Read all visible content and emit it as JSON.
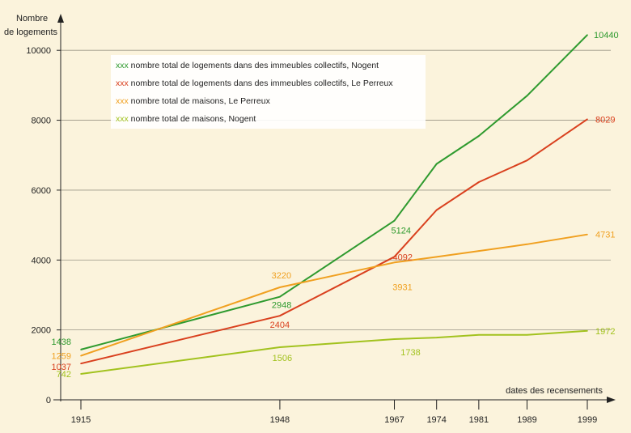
{
  "chart_data": {
    "type": "line",
    "ylabel_lines": [
      "Nombre",
      "de logements"
    ],
    "xlabel": "dates des recensements",
    "x": [
      1915,
      1948,
      1967,
      1974,
      1981,
      1989,
      1999
    ],
    "x_tick_labels": [
      "1915",
      "1948",
      "1967",
      "1974",
      "1981",
      "1989",
      "1999"
    ],
    "y_ticks": [
      0,
      2000,
      4000,
      6000,
      8000,
      10000
    ],
    "y_tick_labels": [
      "0",
      "2000",
      "4000",
      "6000",
      "8000",
      "10000"
    ],
    "ylim": [
      0,
      10800
    ],
    "grid": true,
    "legend_position": "top-left",
    "legend_marker": "xxx",
    "series": [
      {
        "name": "nombre total de logements dans des immeubles collectifs, Nogent",
        "color": "#2e9a2e",
        "values": [
          1438,
          2948,
          5124,
          6750,
          7550,
          8700,
          10440
        ],
        "data_labels": [
          {
            "index": 0,
            "text": "1438"
          },
          {
            "index": 1,
            "text": "2948"
          },
          {
            "index": 2,
            "text": "5124"
          },
          {
            "index": 6,
            "text": "10440"
          }
        ]
      },
      {
        "name": "nombre total de logements dans des immeubles collectifs, Le Perreux",
        "color": "#d9401e",
        "values": [
          1037,
          2404,
          4092,
          5430,
          6230,
          6850,
          8029
        ],
        "data_labels": [
          {
            "index": 0,
            "text": "1037"
          },
          {
            "index": 1,
            "text": "2404"
          },
          {
            "index": 2,
            "text": "4092"
          },
          {
            "index": 6,
            "text": "8029"
          }
        ]
      },
      {
        "name": "nombre total de maisons, Le Perreux",
        "color": "#f0a020",
        "values": [
          1259,
          3220,
          3931,
          4090,
          4260,
          4450,
          4731
        ],
        "data_labels": [
          {
            "index": 0,
            "text": "1259"
          },
          {
            "index": 1,
            "text": "3220"
          },
          {
            "index": 2,
            "text": "3931"
          },
          {
            "index": 6,
            "text": "4731"
          }
        ]
      },
      {
        "name": "nombre total de maisons, Nogent",
        "color": "#a2c21e",
        "values": [
          742,
          1506,
          1738,
          1780,
          1860,
          1860,
          1972
        ],
        "data_labels": [
          {
            "index": 0,
            "text": "742"
          },
          {
            "index": 1,
            "text": "1506"
          },
          {
            "index": 2,
            "text": "1738"
          },
          {
            "index": 6,
            "text": "1972"
          }
        ]
      }
    ]
  }
}
